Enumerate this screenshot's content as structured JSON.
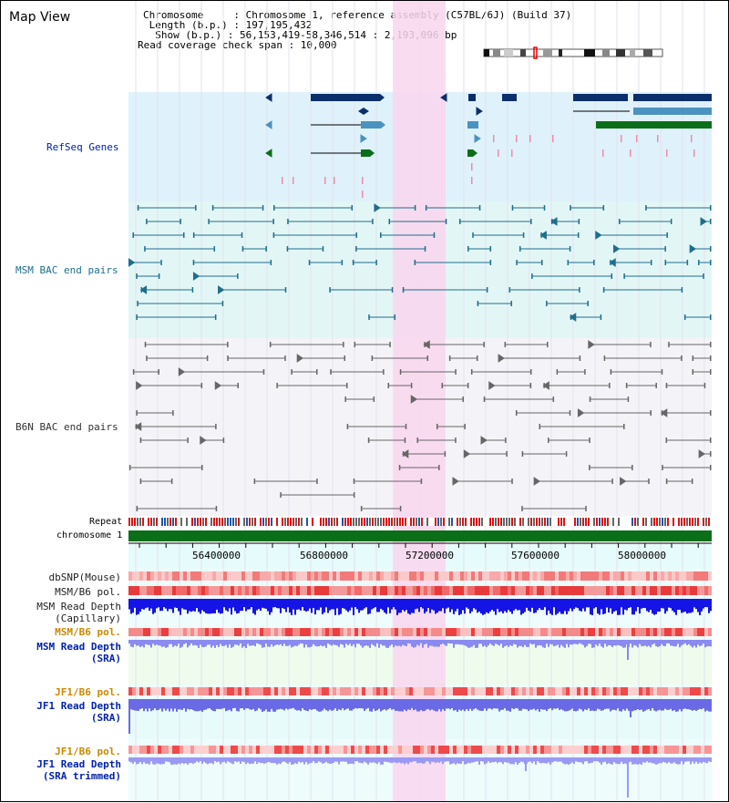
{
  "title": "Map View",
  "info": {
    "chromosome": "Chromosome     : Chromosome 1, reference assembly (C57BL/6J) (Build 37)",
    "length": " Length (b.p.) : 197,195,432",
    "show": "  Show (b.p.) : 56,153,419-58,346,514 : 2,193,096 bp",
    "span": "Read coverage check span : 10,000"
  },
  "tracks": {
    "refseq": "RefSeq Genes",
    "msm_bac": "MSM BAC end pairs",
    "b6n_bac": "B6N BAC end pairs",
    "repeat": "Repeat",
    "chromosome": "chromosome 1",
    "dbsnp": "dbSNP(Mouse)",
    "msm_b6_pol1": "MSM/B6 pol.",
    "msm_read_depth_cap_1": "MSM Read Depth",
    "msm_read_depth_cap_2": "(Capillary)",
    "msm_b6_pol2": "MSM/B6 pol.",
    "msm_read_depth_sra_1": "MSM Read Depth",
    "msm_read_depth_sra_2": "(SRA)",
    "jf1_b6_pol1": "JF1/B6 pol.",
    "jf1_read_depth_sra_1": "JF1 Read Depth",
    "jf1_read_depth_sra_2": "(SRA)",
    "jf1_b6_pol2": "JF1/B6 pol.",
    "jf1_read_depth_trim_1": "JF1 Read Depth",
    "jf1_read_depth_trim_2": "(SRA trimmed)"
  },
  "axis_ticks": [
    "56400000",
    "56800000",
    "57200000",
    "57600000",
    "58000000"
  ],
  "colors": {
    "refseq_bg": "#dff1fb",
    "msm_bg": "#e3f6f6",
    "highlight": "#f9d6ef",
    "msm_line": "#1e6e8c",
    "b6n_line": "#666666",
    "gene_navy": "#0b2f6b",
    "gene_blue": "#4a93c0",
    "gene_green": "#0b6e18",
    "chromosome_green": "#0b6e18",
    "label_blue": "#0022aa",
    "label_orange": "#cc8800"
  }
}
